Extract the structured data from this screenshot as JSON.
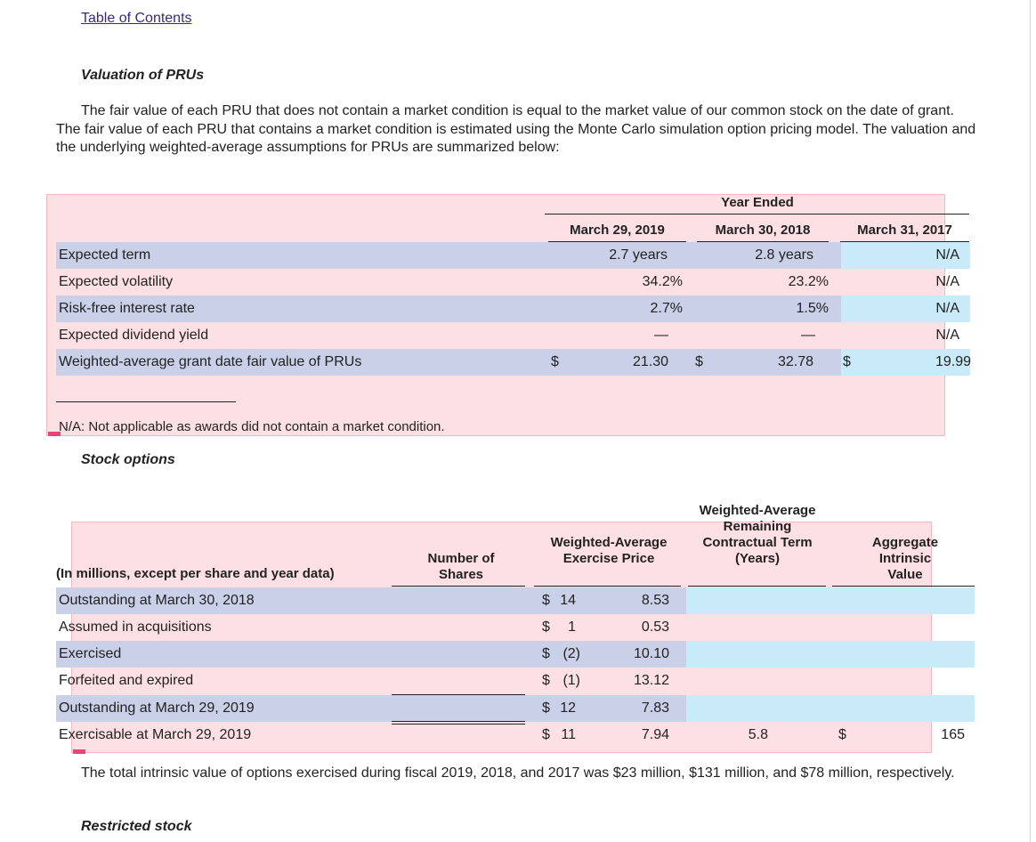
{
  "toc_link": "Table of Contents",
  "prus": {
    "heading": "Valuation of PRUs",
    "paragraph": "The fair value of each PRU that does not contain a market condition is equal to the market value of our common stock on the date of grant. The fair value of each PRU that contains a market condition is estimated using the Monte Carlo simulation option pricing model. The valuation and the underlying weighted-average assumptions for PRUs are summarized below:",
    "table": {
      "group_header": "Year Ended",
      "columns": [
        "March 29, 2019",
        "March 30, 2018",
        "March 31, 2017"
      ],
      "rows": [
        {
          "label": "Expected term",
          "values": [
            "2.7 years",
            "2.8 years",
            "N/A"
          ]
        },
        {
          "label": "Expected volatility",
          "values": [
            "34.2%",
            "23.2%",
            "N/A"
          ]
        },
        {
          "label": "Risk-free interest rate",
          "values": [
            "2.7%",
            "1.5%",
            "N/A"
          ]
        },
        {
          "label": "Expected dividend yield",
          "values": [
            "—",
            "—",
            "N/A"
          ]
        },
        {
          "label": "Weighted-average grant date fair value of PRUs",
          "currency": "$",
          "values": [
            "21.30",
            "32.78",
            "19.99"
          ]
        }
      ]
    },
    "footnote": "N/A: Not applicable as awards did not contain a market condition."
  },
  "options": {
    "heading": "Stock options",
    "table": {
      "header_label": "(In millions, except per share and year data)",
      "col_shares": "Number of Shares",
      "col_price": "Weighted-Average Exercise Price",
      "col_term": "Weighted-Average Remaining Contractual Term (Years)",
      "col_value": "Aggregate Intrinsic Value",
      "rows": [
        {
          "label": "Outstanding at March 30, 2018",
          "shares": "14",
          "currency": "$",
          "price": "8.53"
        },
        {
          "label": "Assumed in acquisitions",
          "shares": "1",
          "currency": "$",
          "price": "0.53"
        },
        {
          "label": "Exercised",
          "shares": "(2)",
          "currency": "$",
          "price": "10.10"
        },
        {
          "label": "Forfeited and expired",
          "shares": "(1)",
          "currency": "$",
          "price": "13.12"
        },
        {
          "label": "Outstanding at March 29, 2019",
          "shares": "12",
          "currency": "$",
          "price": "7.83"
        },
        {
          "label": "Exercisable at March 29, 2019",
          "shares": "11",
          "currency": "$",
          "price": "7.94",
          "term": "5.8",
          "value_currency": "$",
          "value": "165"
        }
      ]
    },
    "paragraph": "The total intrinsic value of options exercised during fiscal 2019, 2018, and 2017 was $23 million, $131 million, and $78 million, respectively."
  },
  "restricted": {
    "heading": "Restricted stock"
  }
}
